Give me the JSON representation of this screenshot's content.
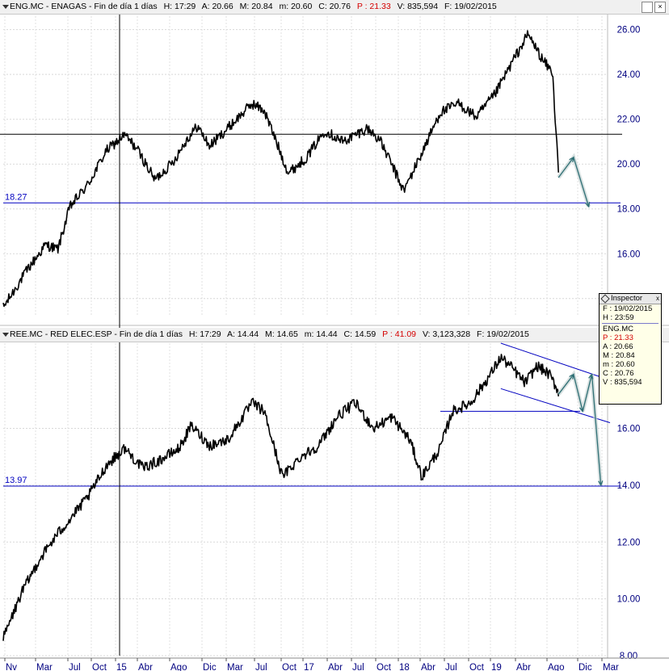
{
  "top_panel": {
    "ticker": "ENG.MC - ENAGAS - Fin de día 1 días",
    "H": "H: 17:29",
    "A": "A: 20.66",
    "M": "M: 20.84",
    "m": "m: 20.60",
    "C": "C: 20.76",
    "P": "P : 21.33",
    "V": "V: 835,594",
    "F": "F: 19/02/2015"
  },
  "bottom_panel": {
    "ticker": "REE.MC - RED ELEC.ESP - Fin de día 1 días",
    "H": "H: 17:29",
    "A": "A: 14.44",
    "M": "M: 14.65",
    "m": "m: 14.44",
    "C": "C: 14.59",
    "P": "P : 41.09",
    "V": "V: 3,123,328",
    "F": "F: 19/02/2015"
  },
  "inspector": {
    "title": "Inspector",
    "close": "x",
    "rows": [
      "F : 19/02/2015",
      "H : 23:59"
    ],
    "ticker": "ENG.MC",
    "P": "P : 21.33",
    "values": [
      "A : 20.66",
      "M : 20.84",
      "m : 20.60",
      "C : 20.76",
      "V : 835,594"
    ]
  },
  "colors": {
    "price": "#000000",
    "level": "#0000c0",
    "axis_text": "#000080",
    "arrow": "#2e6f74",
    "red": "#d40000"
  },
  "chart_data": [
    {
      "type": "line",
      "name": "ENG.MC",
      "x_ticks": [
        "Nv",
        "Mar",
        "Jul",
        "Oct",
        "15",
        "Abr",
        "Ago",
        "Dic",
        "Mar",
        "Jul",
        "Oct",
        "17",
        "Abr",
        "Jul",
        "Oct",
        "18",
        "Abr",
        "Jul",
        "Oct",
        "19",
        "Abr",
        "Ago",
        "Dic",
        "Mar"
      ],
      "y_ticks": [
        "14.00",
        "16.00",
        "18.00",
        "20.00",
        "22.00",
        "24.00",
        "26.00"
      ],
      "ylim": [
        13.2,
        26.6
      ],
      "level_label": "18.27",
      "level": 18.27,
      "crosshair_y": 21.33,
      "crosshair_x_tick": "15",
      "key_points": [
        [
          0,
          13.6
        ],
        [
          0.04,
          15.3
        ],
        [
          0.07,
          16.4
        ],
        [
          0.09,
          16.2
        ],
        [
          0.11,
          18.1
        ],
        [
          0.14,
          19.1
        ],
        [
          0.17,
          20.6
        ],
        [
          0.2,
          21.3
        ],
        [
          0.22,
          20.7
        ],
        [
          0.25,
          19.3
        ],
        [
          0.28,
          20.1
        ],
        [
          0.3,
          21.0
        ],
        [
          0.32,
          21.7
        ],
        [
          0.34,
          20.8
        ],
        [
          0.37,
          21.6
        ],
        [
          0.41,
          22.7
        ],
        [
          0.43,
          22.4
        ],
        [
          0.47,
          19.6
        ],
        [
          0.5,
          20.3
        ],
        [
          0.53,
          21.5
        ],
        [
          0.56,
          21.0
        ],
        [
          0.6,
          21.6
        ],
        [
          0.62,
          21.1
        ],
        [
          0.64,
          20.0
        ],
        [
          0.66,
          18.8
        ],
        [
          0.69,
          20.5
        ],
        [
          0.72,
          22.3
        ],
        [
          0.75,
          22.7
        ],
        [
          0.78,
          22.1
        ],
        [
          0.81,
          23.1
        ],
        [
          0.84,
          24.6
        ],
        [
          0.865,
          25.8
        ],
        [
          0.89,
          24.6
        ],
        [
          0.905,
          24.1
        ],
        [
          0.915,
          19.8
        ]
      ],
      "projection": [
        [
          0.915,
          19.4
        ],
        [
          0.94,
          20.3
        ],
        [
          0.965,
          18.1
        ]
      ]
    },
    {
      "type": "line",
      "name": "REE.MC",
      "x_ticks": [
        "Nv",
        "Mar",
        "Jul",
        "Oct",
        "15",
        "Abr",
        "Ago",
        "Dic",
        "Mar",
        "Jul",
        "Oct",
        "17",
        "Abr",
        "Jul",
        "Oct",
        "18",
        "Abr",
        "Jul",
        "Oct",
        "19",
        "Abr",
        "Ago",
        "Dic",
        "Mar"
      ],
      "y_ticks": [
        "8.00",
        "10.00",
        "12.00",
        "14.00",
        "16.00"
      ],
      "ylim": [
        8.0,
        19.0
      ],
      "level_label": "13.97",
      "level": 13.97,
      "support": 16.6,
      "key_points": [
        [
          0,
          8.6
        ],
        [
          0.03,
          10.2
        ],
        [
          0.06,
          11.4
        ],
        [
          0.09,
          12.3
        ],
        [
          0.11,
          12.8
        ],
        [
          0.14,
          13.6
        ],
        [
          0.17,
          14.7
        ],
        [
          0.2,
          15.3
        ],
        [
          0.23,
          14.6
        ],
        [
          0.26,
          14.9
        ],
        [
          0.29,
          15.3
        ],
        [
          0.31,
          16.1
        ],
        [
          0.34,
          15.4
        ],
        [
          0.37,
          15.6
        ],
        [
          0.41,
          16.9
        ],
        [
          0.43,
          16.6
        ],
        [
          0.46,
          14.3
        ],
        [
          0.49,
          15.0
        ],
        [
          0.52,
          15.4
        ],
        [
          0.55,
          16.4
        ],
        [
          0.58,
          16.9
        ],
        [
          0.61,
          16.0
        ],
        [
          0.64,
          16.4
        ],
        [
          0.67,
          15.6
        ],
        [
          0.69,
          14.3
        ],
        [
          0.72,
          15.3
        ],
        [
          0.74,
          16.6
        ],
        [
          0.77,
          16.9
        ],
        [
          0.8,
          17.8
        ],
        [
          0.82,
          18.5
        ],
        [
          0.84,
          18.1
        ],
        [
          0.86,
          17.6
        ],
        [
          0.88,
          18.2
        ],
        [
          0.9,
          17.9
        ],
        [
          0.915,
          17.3
        ]
      ],
      "channel_upper": [
        [
          0.82,
          19.0
        ],
        [
          1.0,
          17.7
        ]
      ],
      "channel_lower": [
        [
          0.82,
          17.4
        ],
        [
          1.0,
          16.2
        ]
      ],
      "projection": [
        [
          0.915,
          17.2
        ],
        [
          0.94,
          17.9
        ],
        [
          0.955,
          16.6
        ],
        [
          0.97,
          17.9
        ],
        [
          0.985,
          14.0
        ]
      ]
    }
  ]
}
